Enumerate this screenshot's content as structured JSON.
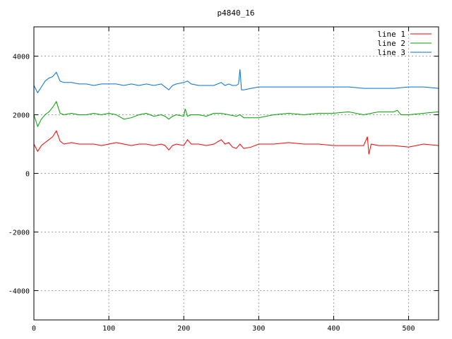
{
  "chart_data": {
    "type": "line",
    "title": "p4840_16",
    "xlabel": "",
    "ylabel": "",
    "xlim": [
      0,
      540
    ],
    "ylim": [
      -5000,
      5000
    ],
    "x_ticks": [
      0,
      100,
      200,
      300,
      400,
      500
    ],
    "y_ticks": [
      -4000,
      -2000,
      0,
      2000,
      4000
    ],
    "grid": true,
    "legend_position": "top-right",
    "series": [
      {
        "name": "line 1",
        "color": "#ff0000",
        "x": [
          0,
          5,
          10,
          15,
          20,
          25,
          30,
          35,
          40,
          50,
          60,
          70,
          80,
          90,
          100,
          110,
          120,
          130,
          140,
          150,
          160,
          170,
          175,
          180,
          185,
          190,
          200,
          205,
          210,
          220,
          230,
          240,
          250,
          255,
          260,
          265,
          270,
          275,
          280,
          290,
          300,
          320,
          340,
          360,
          380,
          400,
          420,
          440,
          445,
          447,
          450,
          460,
          480,
          500,
          520,
          540
        ],
        "y": [
          1000,
          750,
          950,
          1050,
          1150,
          1250,
          1450,
          1100,
          1000,
          1050,
          1000,
          1000,
          1000,
          950,
          1000,
          1050,
          1000,
          950,
          1000,
          1000,
          950,
          1000,
          950,
          800,
          950,
          1000,
          950,
          1150,
          1000,
          1000,
          950,
          1000,
          1150,
          1000,
          1050,
          900,
          850,
          1000,
          850,
          900,
          1000,
          1000,
          1050,
          1000,
          1000,
          950,
          950,
          950,
          1250,
          650,
          1000,
          950,
          950,
          900,
          1000,
          950
        ]
      },
      {
        "name": "line 2",
        "color": "#00a000",
        "x": [
          0,
          5,
          10,
          15,
          20,
          25,
          30,
          35,
          40,
          50,
          60,
          70,
          80,
          90,
          100,
          110,
          120,
          130,
          140,
          150,
          160,
          170,
          175,
          180,
          185,
          190,
          200,
          202,
          205,
          210,
          220,
          230,
          240,
          250,
          260,
          270,
          275,
          280,
          290,
          300,
          320,
          340,
          360,
          380,
          400,
          420,
          440,
          460,
          480,
          485,
          490,
          500,
          520,
          540
        ],
        "y": [
          2000,
          1600,
          1850,
          2000,
          2100,
          2250,
          2450,
          2050,
          2000,
          2050,
          2000,
          2000,
          2050,
          2000,
          2050,
          2000,
          1850,
          1900,
          2000,
          2050,
          1950,
          2000,
          1950,
          1850,
          1950,
          2000,
          1950,
          2200,
          1950,
          2000,
          2000,
          1950,
          2050,
          2050,
          2000,
          1950,
          2000,
          1900,
          1900,
          1900,
          2000,
          2050,
          2000,
          2050,
          2050,
          2100,
          2000,
          2100,
          2100,
          2150,
          2000,
          2000,
          2050,
          2100
        ]
      },
      {
        "name": "line 3",
        "color": "#0070d0",
        "x": [
          0,
          5,
          10,
          15,
          20,
          25,
          30,
          35,
          40,
          50,
          60,
          70,
          80,
          90,
          100,
          110,
          120,
          130,
          140,
          150,
          160,
          170,
          175,
          180,
          185,
          190,
          200,
          205,
          210,
          220,
          230,
          240,
          250,
          255,
          260,
          265,
          270,
          273,
          275,
          277,
          280,
          290,
          300,
          320,
          340,
          360,
          380,
          400,
          420,
          440,
          460,
          480,
          500,
          520,
          540
        ],
        "y": [
          3000,
          2750,
          2950,
          3150,
          3250,
          3300,
          3450,
          3150,
          3100,
          3100,
          3050,
          3050,
          3000,
          3050,
          3050,
          3050,
          3000,
          3050,
          3000,
          3050,
          3000,
          3050,
          2950,
          2850,
          3000,
          3050,
          3100,
          3150,
          3050,
          3000,
          3000,
          3000,
          3100,
          3000,
          3050,
          3000,
          3000,
          3050,
          3550,
          2850,
          2850,
          2900,
          2950,
          2950,
          2950,
          2950,
          2950,
          2950,
          2950,
          2900,
          2900,
          2900,
          2950,
          2950,
          2900
        ]
      }
    ]
  }
}
